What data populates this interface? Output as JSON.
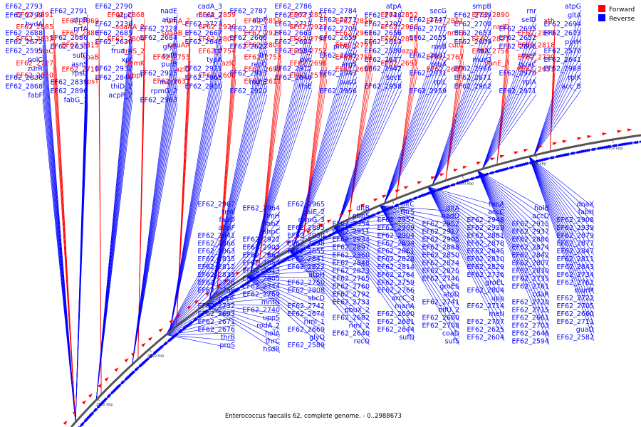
{
  "colors": {
    "forward": "#ff0000",
    "reverse": "#0000ff",
    "backbone": "#555555",
    "background": "#ffffff"
  },
  "legend": {
    "forward": "Forward",
    "reverse": "Reverse"
  },
  "caption": "Enterococcus faecalis 62, complete genome. - 0..2988673",
  "genome": {
    "length": 2988673,
    "view_start": 2520000,
    "view_end": 2988673
  },
  "ticks": [
    "2550 kbp",
    "2600 kbp",
    "2650 kbp",
    "2700 kbp",
    "2750 kbp",
    "2800 kbp",
    "2850 kbp",
    "2900 kbp",
    "2950 kbp"
  ],
  "labels": {
    "forward": [
      "EF62_2891",
      "EF62_2869",
      "EF62_2868",
      "rumA_2",
      "EF62_2859",
      "EF62_2858",
      "EF62_2857",
      "EF62_2856",
      "EF62_2852",
      "EF62_2851",
      "EF62_2890",
      "xth",
      "EF62_2885",
      "EF62_2880",
      "sdaAA_2",
      "sdaAB_2",
      "EF62_2926",
      "EF62_2924",
      "EF62_2923",
      "EF62_2961",
      "EF62_2960",
      "nrdG",
      "nrdD",
      "EF62_2840",
      "EF62_2832",
      "EF62_2815",
      "EF62_2809",
      "opuAA",
      "EF62_2801",
      "EF62_2800",
      "EF62_2798",
      "EF62_2797",
      "EF62_2831",
      "cutC",
      "EF62_2821",
      "EF62_2818",
      "coaC",
      "coaB",
      "trpS_2",
      "EF62_2755",
      "EF62_2754",
      "EF62_2753",
      "EF62_2752",
      "EF62_2751",
      "azoA",
      "EF62_2767",
      "EF62_2756",
      "EF62_2729",
      "EF62_2727",
      "EF62_2719",
      "hemK",
      "azlD",
      "azlC",
      "EF62_2699",
      "EF62_2696",
      "EF62_2698",
      "EF62_2697",
      "EF62_2687",
      "panE_3",
      "EF62_2651",
      "EF62_2650",
      "rpsT",
      "uppP",
      "EF62_2637",
      "EF62_2600",
      "EF62_2611",
      "EF62_2578"
    ],
    "reverse": [
      "EF62_2793",
      "EF62_2791",
      "EF62_2790",
      "nadE",
      "cadA_3",
      "EF62_2787",
      "EF62_2786",
      "EF62_2784",
      "atpA",
      "secG",
      "smpB",
      "rnr",
      "atpG",
      "EF62_2799",
      "atpB",
      "atpC",
      "atpE",
      "murA_2",
      "atpF",
      "EF62_2773",
      "EF62_2771",
      "EF62_2748",
      "EF62_2747",
      "EF62_2739",
      "selD",
      "gltA",
      "hydA",
      "prfA",
      "EF62_2738",
      "EF62_2728",
      "EF62_2723",
      "EF62_2713",
      "EF62_2712",
      "EF62_2709",
      "EF62_2702",
      "EF62_2701",
      "EF62_2700",
      "EF62_2695",
      "EF62_2694",
      "EF62_2688",
      "EF62_2686",
      "EF62_2685",
      "EF62_2684",
      "EF62_2667",
      "EF62_2666",
      "EF62_2663",
      "EF62_2659",
      "EF62_2656",
      "EF62_2655",
      "EF62_2653",
      "EF62_2652",
      "EF62_2673",
      "EF62_2672",
      "EF62_2633",
      "EF62_2630",
      "glyS",
      "EF62_2645",
      "EF62_2622",
      "EF62_2621",
      "proC_2",
      "EF62_2613",
      "rpsB",
      "EF62_2609",
      "EF62_2606",
      "pyrH",
      "EF62_2595",
      "sufC",
      "frua_4",
      "sufB",
      "tsf",
      "frr",
      "EF62_2584",
      "EF62_2605",
      "EF62_2580",
      "EF62_2601",
      "talC",
      "rseP",
      "EF62_2570",
      "polC",
      "asnS",
      "xpt",
      "purB",
      "typA",
      "recQ",
      "pyc",
      "argS",
      "EF62_2677",
      "ptbA",
      "murQ",
      "guaC",
      "EF62_2641",
      "zurR",
      "rpsU",
      "EF62_2932",
      "EF62_2925",
      "EF62_2921",
      "EF62_2913",
      "EF62_2912",
      "EF62_2943",
      "EF62_2942",
      "EF62_2931",
      "EF62_2966",
      "EF62_2970",
      "EF62_2969",
      "EF62_2836",
      "EF62_2839",
      "EF62_2844",
      "murY",
      "EF62_2865",
      "mgtE",
      "EF62_2846",
      "nusG",
      "secE",
      "rplL",
      "EF62_2871",
      "rplA",
      "rplK",
      "EF62_2868",
      "EF62_2896",
      "thiD_2",
      "rpmG_2",
      "EF62_2910",
      "EF62_2920",
      "thiE",
      "EF62_2956",
      "EF62_2958",
      "EF62_2959",
      "EF62_2962",
      "EF62_2971",
      "acc_B",
      "fabF",
      "fabG_1",
      "acpP_2",
      "EF62_2963",
      "EF62_2967",
      "EF62_2964",
      "EF62_2965",
      "dltB",
      "dltC",
      "dltA",
      "tenA",
      "holB",
      "dnaX",
      "tmk",
      "rlmH",
      "galE_2",
      "pbp5",
      "thrS",
      "nadD",
      "accC",
      "accD",
      "fabH",
      "fabD",
      "fabZ",
      "rpmG_3",
      "EF62_2954",
      "EF62_2957",
      "EF62_2952",
      "EF62_2948",
      "EF62_2915",
      "EF62_2908",
      "ahpF",
      "ahpC",
      "EF62_2895",
      "EF62_2911",
      "EF62_2909",
      "EF62_2917",
      "EF62_2929",
      "EF62_2937",
      "EF62_2939",
      "EF62_2941",
      "EF62_2922",
      "EF62_2930",
      "EF62_2934",
      "EF62_2904",
      "EF62_2905",
      "EF62_2881",
      "EF62_2886",
      "EF62_2879",
      "EF62_2866",
      "EF62_2903",
      "EF62_2898",
      "EF62_2897",
      "EF62_2894",
      "EF62_2888",
      "EF62_2878",
      "EF62_2874",
      "EF62_2877",
      "EF62_2863",
      "EF62_2867",
      "EF62_2855",
      "EF62_2860",
      "EF62_2861",
      "EF62_2850",
      "EF62_2845",
      "EF62_2842",
      "EF62_2847",
      "EF62_2835",
      "EF62_2854",
      "EF62_2841",
      "EF62_2848",
      "EF62_2828",
      "EF62_2824",
      "EF62_2810",
      "EF62_2807",
      "EF62_2811",
      "EF62_2812",
      "EF62_2813",
      "EF62_2822",
      "EF62_2823",
      "EF62_2814",
      "EF62_2825",
      "EF62_2829",
      "EF62_2830",
      "EF62_2843",
      "EF62_2833",
      "EF62_2805",
      "atpH",
      "EF62_2765",
      "EF62_2764",
      "EF62_2746",
      "EF62_2736",
      "EF62_2735",
      "EF62_2734",
      "EF62_2726",
      "EF62_2744",
      "EF62_2750",
      "EF62_2760",
      "EF62_2759",
      "groES",
      "groEL",
      "EF62_2761",
      "EF62_2762",
      "EF62_2758",
      "EF62_2769",
      "EF62_2808",
      "EF62_2792",
      "EF62_2766",
      "atpD",
      "EF62_2804",
      "cdaR",
      "murM",
      "pepF",
      "mntN",
      "sbcD",
      "EF62_2733",
      "arcC_3",
      "EF62_2741",
      "upp",
      "EF62_2720",
      "EF62_2722",
      "EF62_2732",
      "EF62_2740",
      "EF62_2742",
      "pbuX_2",
      "manA",
      "nifU_2",
      "EF62_2714",
      "EF62_2715",
      "EF62_2705",
      "EF62_2693",
      "uppS",
      "EF62_2674",
      "EF62_2682",
      "EF62_2690",
      "EF62_2680",
      "metI",
      "EF62_2661",
      "EF62_2660",
      "EF62_2671",
      "rodA_2",
      "rimI_1",
      "rimI_2",
      "EF62_2681",
      "EF62_2708",
      "EF62_2707",
      "EF62_2703",
      "EF62_2711",
      "EF62_2676",
      "holA",
      "EF62_2669",
      "EF62_2640",
      "EF62_2644",
      "coaD",
      "EF62_2625",
      "EF62_2646",
      "guaD",
      "thrB",
      "thrC",
      "glyQ",
      "recO",
      "sufD",
      "sufS",
      "EF62_2604",
      "EF62_2594",
      "EF62_2582",
      "proS",
      "hsdR",
      "EF62_2589"
    ]
  }
}
